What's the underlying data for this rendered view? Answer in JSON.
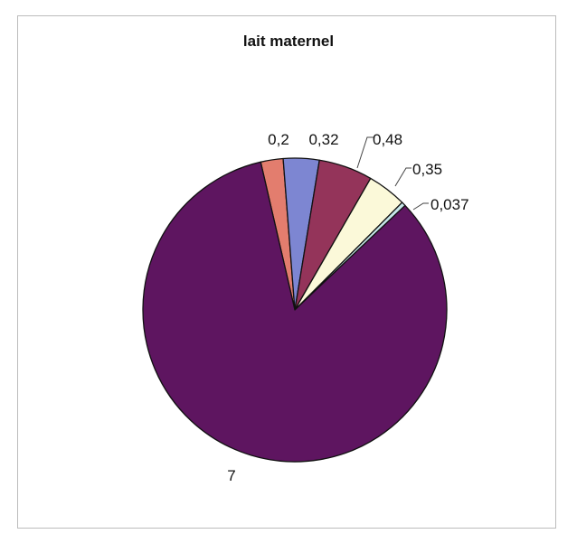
{
  "chart_data": {
    "type": "pie",
    "title": "lait maternel",
    "slices": [
      {
        "label": "0,2",
        "value": 0.2,
        "color": "#e37d6e"
      },
      {
        "label": "0,32",
        "value": 0.32,
        "color": "#7d86d2"
      },
      {
        "label": "0,48",
        "value": 0.48,
        "color": "#94345a"
      },
      {
        "label": "0,35",
        "value": 0.35,
        "color": "#fbf9d9"
      },
      {
        "label": "0,037",
        "value": 0.037,
        "color": "#c7e7ea"
      },
      {
        "label": "7",
        "value": 7,
        "color": "#5e1560"
      }
    ],
    "legend": "none"
  }
}
